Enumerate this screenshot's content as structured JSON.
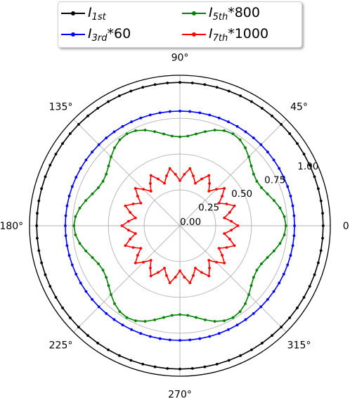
{
  "chart_data": {
    "type": "line",
    "projection": "polar",
    "angle_ticks_deg": [
      0,
      45,
      90,
      135,
      180,
      225,
      270,
      315
    ],
    "angle_tick_labels": [
      "0°",
      "45°",
      "90°",
      "135°",
      "180°",
      "225°",
      "270°",
      "315°"
    ],
    "radial_ticks": [
      0.0,
      0.25,
      0.5,
      0.75,
      1.0
    ],
    "radial_tick_labels": [
      "0.00",
      "0.25",
      "0.50",
      "0.75",
      "1.00"
    ],
    "rlim": [
      0,
      1.05
    ],
    "grid": true,
    "legend": {
      "placement": "top-center",
      "columns": 2
    },
    "series": [
      {
        "name": "I_1st",
        "label_main": "I",
        "label_sub": "1st",
        "label_suffix": "",
        "color": "#000000",
        "model": {
          "base": 1.0,
          "amp": 0.0,
          "harmonic": 0,
          "phase_deg": 0
        },
        "n_points": 72
      },
      {
        "name": "I_3rd*60",
        "label_main": "I",
        "label_sub": "3rd",
        "label_suffix": "*60",
        "color": "#0000ff",
        "model": {
          "base": 0.8,
          "amp": 0.0,
          "harmonic": 0,
          "phase_deg": 0
        },
        "n_points": 72
      },
      {
        "name": "I_5th*800",
        "label_main": "I",
        "label_sub": "5th",
        "label_suffix": "*800",
        "color": "#008000",
        "model": {
          "base": 0.68,
          "amp": 0.06,
          "harmonic": 6,
          "phase_deg": 0
        },
        "n_points": 72
      },
      {
        "name": "I_7th*1000",
        "label_main": "I",
        "label_sub": "7th",
        "label_suffix": "*1000",
        "color": "#ff0000",
        "model": {
          "base": 0.36,
          "amp": 0.045,
          "harmonic": 18,
          "phase_deg": 0
        },
        "n_points": 72
      }
    ]
  }
}
